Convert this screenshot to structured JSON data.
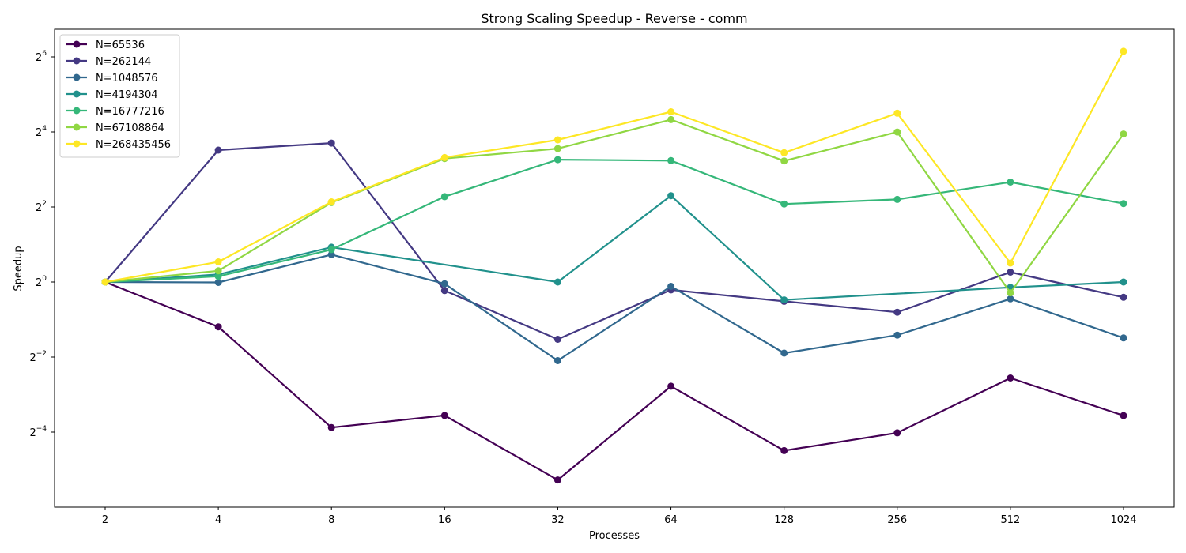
{
  "chart_data": {
    "type": "line",
    "title": "Strong Scaling Speedup - Reverse - comm",
    "xlabel": "Processes",
    "ylabel": "Speedup",
    "y_scale": "log2",
    "ylim_log2": [
      -6.4,
      6.6
    ],
    "y_ticks": [
      {
        "base": "2",
        "exp": "6",
        "log2": 6
      },
      {
        "base": "2",
        "exp": "4",
        "log2": 4
      },
      {
        "base": "2",
        "exp": "2",
        "log2": 2
      },
      {
        "base": "2",
        "exp": "0",
        "log2": 0
      },
      {
        "base": "2",
        "exp": "−2",
        "log2": -2
      },
      {
        "base": "2",
        "exp": "−4",
        "log2": -4
      }
    ],
    "categories": [
      "2",
      "4",
      "8",
      "16",
      "32",
      "64",
      "128",
      "256",
      "512",
      "1024"
    ],
    "legend_position": "upper-left",
    "grid": false,
    "series": [
      {
        "name": "N=65536",
        "color": "#440154",
        "values": [
          1.0,
          0.437,
          0.068,
          0.085,
          0.0258,
          0.146,
          0.0444,
          0.0617,
          0.1698,
          0.0848
        ]
      },
      {
        "name": "N=262144",
        "color": "#443983",
        "values": [
          1.0,
          11.43,
          13.03,
          0.854,
          0.347,
          0.866,
          0.7,
          0.573,
          1.2,
          0.755
        ]
      },
      {
        "name": "N=1048576",
        "color": "#31688e",
        "values": [
          1.0,
          0.993,
          1.66,
          0.968,
          0.234,
          0.923,
          0.269,
          0.375,
          0.733,
          0.356
        ]
      },
      {
        "name": "N=4194304",
        "color": "#21918c",
        "values": [
          1.0,
          1.15,
          1.904,
          null,
          1.0,
          4.93,
          0.719,
          null,
          0.906,
          1.0
        ]
      },
      {
        "name": "N=16777216",
        "color": "#35b779",
        "values": [
          1.0,
          1.11,
          1.823,
          4.84,
          9.58,
          9.42,
          4.23,
          4.6,
          6.33,
          4.26
        ]
      },
      {
        "name": "N=67108864",
        "color": "#90d743",
        "values": [
          1.0,
          1.23,
          4.34,
          9.79,
          11.76,
          20.1,
          9.37,
          15.98,
          0.82,
          15.4
        ]
      },
      {
        "name": "N=268435456",
        "color": "#fde725",
        "values": [
          1.0,
          1.45,
          4.4,
          9.97,
          13.82,
          23.2,
          10.9,
          22.6,
          1.42,
          71.0
        ]
      }
    ]
  }
}
